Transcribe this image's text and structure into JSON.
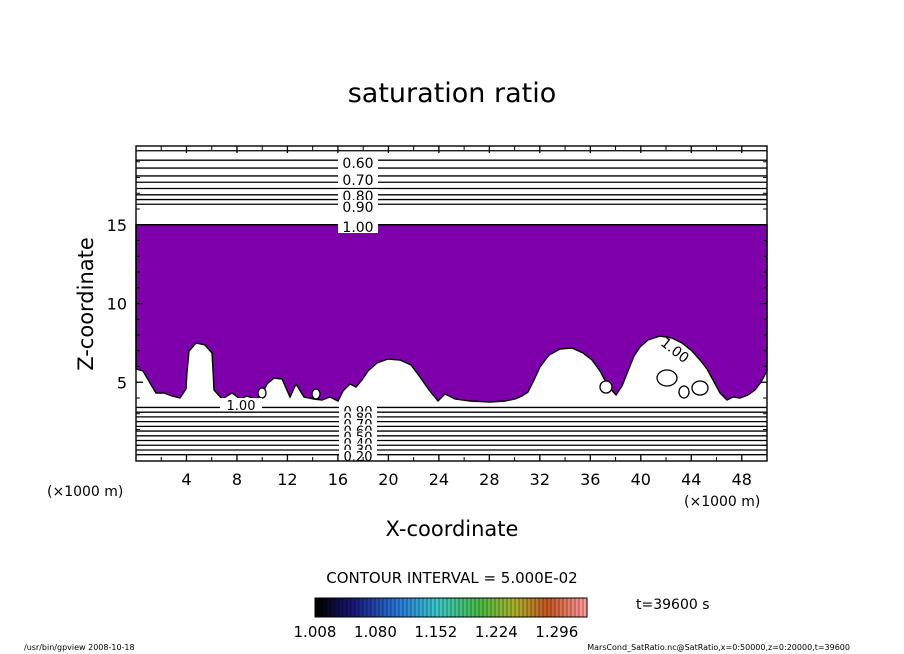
{
  "chart_data": {
    "type": "heatmap",
    "title": "saturation ratio",
    "xlabel": "X-coordinate",
    "ylabel": "Z-coordinate",
    "x_unit": "(×1000 m)",
    "y_unit": "(×1000 m)",
    "xlim": [
      0,
      50
    ],
    "ylim": [
      0,
      20
    ],
    "x_ticks": [
      "4",
      "8",
      "12",
      "16",
      "20",
      "24",
      "28",
      "32",
      "36",
      "40",
      "44",
      "48"
    ],
    "y_ticks": [
      "5",
      "10",
      "15"
    ],
    "contour_interval": "CONTOUR INTERVAL = 5.000E-02",
    "time_label": "t=39600 s",
    "colorbar": {
      "min": 1.008,
      "max": 1.332,
      "tick_labels": [
        "1.008",
        "1.080",
        "1.152",
        "1.224",
        "1.296"
      ],
      "colormap": "rainbow",
      "start_color": "#000000",
      "end_color": "#ff9a9a"
    },
    "upper_contour_labels": [
      "0.60",
      "0.70",
      "0.80",
      "0.90",
      "1.00"
    ],
    "lower_contour_labels": [
      "0.90",
      "0.80",
      "0.70",
      "0.60",
      "0.50",
      "0.40",
      "0.30",
      "0.20"
    ],
    "interior_contour_labels": [
      "1.00",
      "1.00"
    ],
    "fill_color": "#7e00aa",
    "fill_level": 1.008,
    "fill_region_z": [
      3.6,
      15.0
    ],
    "upper_contour_z": [
      16.3,
      16.6,
      16.9,
      17.3,
      17.7,
      18.1,
      18.6,
      19.1,
      19.7
    ],
    "lower_contour_z": [
      3.4,
      3.1,
      2.8,
      2.5,
      2.2,
      1.9,
      1.6,
      1.3,
      1.0,
      0.7,
      0.4
    ]
  },
  "footer": {
    "left": "/usr/bin/gpview  2008-10-18",
    "right": "MarsCond_SatRatio.nc@SatRatio,x=0:50000,z=0:20000,t=39600"
  }
}
